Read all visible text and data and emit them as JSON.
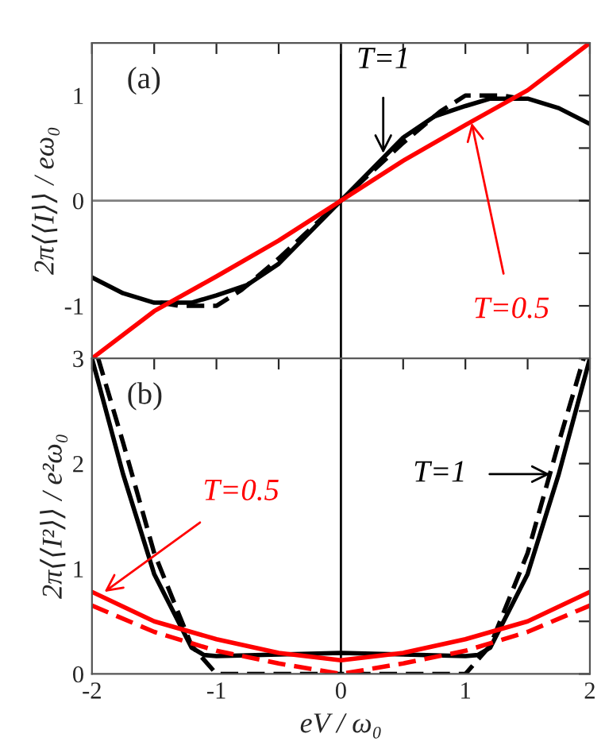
{
  "chart_data": [
    {
      "type": "line",
      "ylabel": "2π⟨⟨I⟩⟩ / eω₀",
      "xlim": [
        -2,
        2
      ],
      "ylim": [
        -1.5,
        1.5
      ],
      "tick_labels": "y",
      "xticks": [
        {
          "value": -2,
          "label": null
        },
        {
          "value": -1.5,
          "label": null
        },
        {
          "value": -1,
          "label": null
        },
        {
          "value": -0.5,
          "label": null
        },
        {
          "value": 0,
          "label": null
        },
        {
          "value": 0.5,
          "label": null
        },
        {
          "value": 1,
          "label": null
        },
        {
          "value": 1.5,
          "label": null
        },
        {
          "value": 2,
          "label": null
        }
      ],
      "yticks": [
        {
          "value": -1.5,
          "label": null
        },
        -1,
        {
          "value": -0.5,
          "label": null
        },
        0,
        {
          "value": 0.5,
          "label": null
        },
        1,
        {
          "value": 1.5,
          "label": null
        }
      ],
      "series": [
        {
          "color": "#000000",
          "line_style": "solid",
          "x": [
            -2,
            -1.75,
            -1.5,
            -1.2,
            -1,
            -0.75,
            -0.5,
            0,
            0.5,
            0.75,
            1,
            1.2,
            1.5,
            1.75,
            2
          ],
          "values": [
            -0.73,
            -0.88,
            -0.97,
            -0.97,
            -0.9,
            -0.8,
            -0.6,
            0,
            0.6,
            0.8,
            0.9,
            0.97,
            0.97,
            0.88,
            0.73
          ]
        },
        {
          "color": "#000000",
          "line_style": "dashed",
          "x": [
            -1.45,
            -1.3,
            -1,
            -0.8,
            -0.5,
            0,
            0.5,
            0.8,
            1,
            1.3,
            1.45
          ],
          "values": [
            -0.97,
            -1,
            -1,
            -0.85,
            -0.55,
            0,
            0.55,
            0.85,
            1,
            1,
            0.97
          ]
        },
        {
          "color": "#ff0000",
          "line_style": "solid",
          "x": [
            -2,
            -1.5,
            -1,
            -0.5,
            0,
            0.5,
            1,
            1.5,
            2
          ],
          "values": [
            -1.5,
            -1.05,
            -0.72,
            -0.38,
            0,
            0.38,
            0.72,
            1.05,
            1.5
          ]
        }
      ],
      "ref_lines": [
        {
          "axis": "x",
          "value": 0,
          "color": "#000000"
        },
        {
          "axis": "y",
          "value": 0,
          "color": "#808080"
        }
      ],
      "annotations": [
        "(a)",
        {
          "text": "T=1",
          "x": 0.34,
          "y": 0.45
        },
        {
          "text": "T=0.5",
          "x": 1.05,
          "y": 0.74
        }
      ]
    },
    {
      "type": "line",
      "xlabel": "eV / ω₀",
      "ylabel": "2π⟨⟨I²⟩⟩ / e²ω₀",
      "xlim": [
        -2,
        2
      ],
      "ylim": [
        0,
        3
      ],
      "xticks": [
        -2,
        {
          "value": -1.5,
          "label": null
        },
        -1,
        {
          "value": -0.5,
          "label": null
        },
        0,
        {
          "value": 0.5,
          "label": null
        },
        1,
        {
          "value": 1.5,
          "label": null
        },
        2
      ],
      "yticks": [
        0,
        {
          "value": 0.5,
          "label": null
        },
        1,
        {
          "value": 1.5,
          "label": null
        },
        2,
        {
          "value": 2.5,
          "label": null
        },
        3
      ],
      "series": [
        {
          "color": "#000000",
          "line_style": "solid",
          "x": [
            -2,
            -1.75,
            -1.5,
            -1.2,
            -1.1,
            -1,
            0,
            1,
            1.1,
            1.2,
            1.5,
            1.75,
            2
          ],
          "values": [
            3.0,
            1.9,
            0.95,
            0.25,
            0.18,
            0.17,
            0.2,
            0.17,
            0.18,
            0.25,
            0.95,
            1.9,
            3.0
          ]
        },
        {
          "color": "#000000",
          "line_style": "dashed",
          "x": [
            -1.95,
            -1.75,
            -1.5,
            -1.2,
            -1,
            0,
            1,
            1.2,
            1.5,
            1.75,
            1.95
          ],
          "values": [
            3.0,
            2.2,
            1.15,
            0.27,
            0,
            0,
            0,
            0.27,
            1.15,
            2.2,
            3.0
          ]
        },
        {
          "color": "#ff0000",
          "line_style": "solid",
          "x": [
            -2,
            -1.5,
            -1,
            -0.5,
            0,
            0.5,
            1,
            1.5,
            2
          ],
          "values": [
            0.78,
            0.5,
            0.33,
            0.2,
            0.13,
            0.2,
            0.33,
            0.5,
            0.78
          ]
        },
        {
          "color": "#ff0000",
          "line_style": "dashed",
          "x": [
            -2,
            -1.5,
            -1,
            -0.5,
            0,
            0.5,
            1,
            1.5,
            2
          ],
          "values": [
            0.65,
            0.4,
            0.22,
            0.1,
            0,
            0.1,
            0.22,
            0.4,
            0.65
          ]
        }
      ],
      "ref_lines": [
        {
          "axis": "x",
          "value": 0,
          "color": "#000000"
        }
      ],
      "annotations": [
        "(b)",
        {
          "text": "T=1",
          "x": 1.68,
          "y": 1.9
        },
        {
          "text": "T=0.5",
          "x": -1.9,
          "y": 0.78
        }
      ]
    }
  ]
}
